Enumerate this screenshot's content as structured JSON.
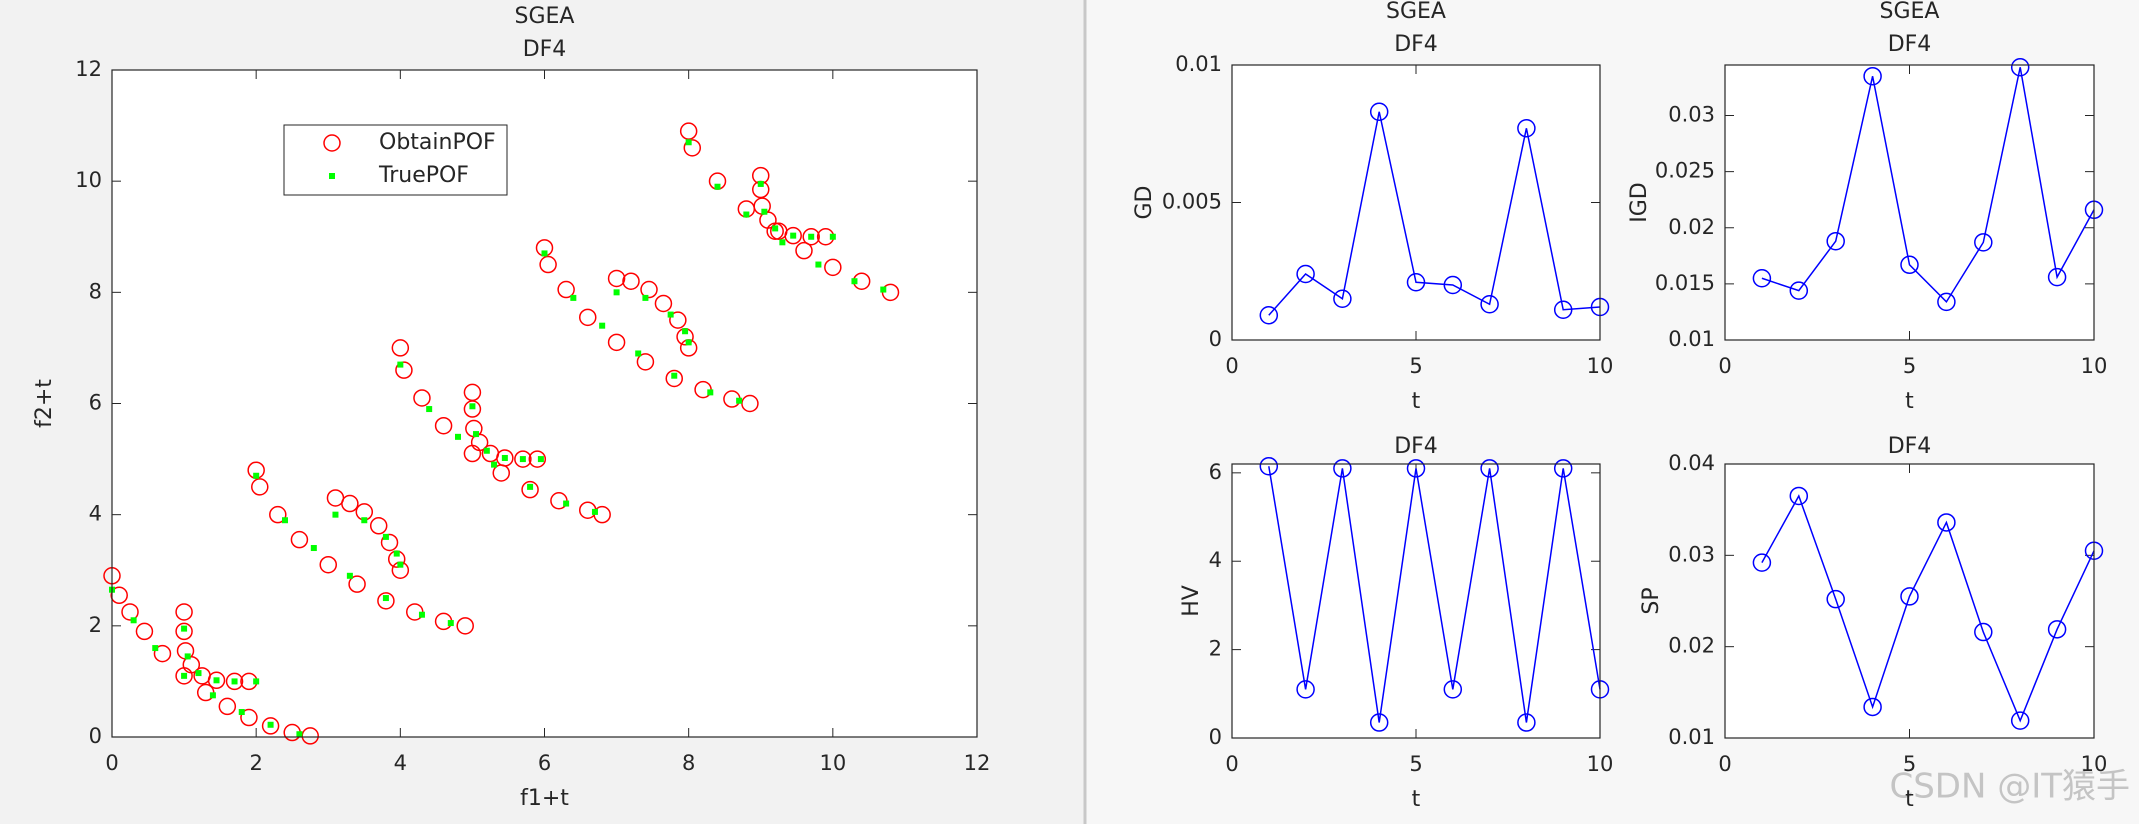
{
  "chart_data": [
    {
      "type": "scatter",
      "title": "SGEA",
      "subtitle": "DF4",
      "x_label": "f1+t",
      "y_label": "f2+t",
      "xlim": [
        0,
        12
      ],
      "ylim": [
        0,
        12
      ],
      "xticks": [
        0,
        2,
        4,
        6,
        8,
        10,
        12
      ],
      "yticks": [
        0,
        2,
        4,
        6,
        8,
        10,
        12
      ],
      "legend": "northwest",
      "series": [
        {
          "name": "ObtainPOF",
          "color": "#ff0000",
          "marker": "o",
          "x": [
            0,
            0.1,
            0.25,
            0.45,
            0.7,
            1.0,
            1.3,
            1.6,
            1.9,
            2.2,
            2.5,
            2.75,
            1,
            1,
            1.02,
            1.1,
            1.25,
            1.45,
            1.7,
            1.9,
            2,
            2.05,
            2.3,
            2.6,
            3.0,
            3.4,
            3.8,
            4.2,
            4.6,
            4.9,
            3.1,
            3.3,
            3.5,
            3.7,
            3.85,
            3.95,
            4.0,
            4,
            4.05,
            4.3,
            4.6,
            5.0,
            5.4,
            5.8,
            6.2,
            6.6,
            6.8,
            5,
            5,
            5.02,
            5.1,
            5.25,
            5.45,
            5.7,
            5.9,
            6,
            6.05,
            6.3,
            6.6,
            7.0,
            7.4,
            7.8,
            8.2,
            8.6,
            8.85,
            7,
            7.2,
            7.45,
            7.65,
            7.85,
            7.95,
            8.0,
            8,
            8.05,
            8.4,
            8.8,
            9.2,
            9.6,
            10.0,
            10.4,
            10.8,
            9,
            9,
            9.02,
            9.1,
            9.25,
            9.45,
            9.7,
            9.9
          ],
          "y": [
            2.9,
            2.55,
            2.25,
            1.9,
            1.5,
            1.1,
            0.8,
            0.55,
            0.35,
            0.2,
            0.08,
            0.02,
            2.25,
            1.9,
            1.55,
            1.3,
            1.1,
            1.02,
            1.0,
            1.0,
            4.8,
            4.5,
            4.0,
            3.55,
            3.1,
            2.75,
            2.45,
            2.25,
            2.08,
            2.0,
            4.3,
            4.2,
            4.05,
            3.8,
            3.5,
            3.2,
            3.0,
            7.0,
            6.6,
            6.1,
            5.6,
            5.1,
            4.75,
            4.45,
            4.25,
            4.08,
            4.0,
            6.2,
            5.9,
            5.55,
            5.3,
            5.1,
            5.02,
            5.0,
            5.0,
            8.8,
            8.5,
            8.05,
            7.55,
            7.1,
            6.75,
            6.45,
            6.25,
            6.08,
            6.0,
            8.25,
            8.2,
            8.05,
            7.8,
            7.5,
            7.2,
            7.0,
            10.9,
            10.6,
            10.0,
            9.5,
            9.1,
            8.75,
            8.45,
            8.2,
            8.0,
            10.1,
            9.85,
            9.55,
            9.3,
            9.1,
            9.02,
            9.0,
            9.0
          ]
        },
        {
          "name": "TruePOF",
          "color": "#00ff00",
          "marker": ".",
          "x": [
            0,
            0.3,
            0.6,
            1.0,
            1.4,
            1.8,
            2.2,
            2.6,
            1,
            1.05,
            1.2,
            1.45,
            1.7,
            2.0,
            2,
            2.4,
            2.8,
            3.3,
            3.8,
            4.3,
            4.7,
            3.1,
            3.5,
            3.8,
            3.95,
            4.0,
            4,
            4.4,
            4.8,
            5.3,
            5.8,
            6.3,
            6.7,
            5,
            5.05,
            5.2,
            5.45,
            5.7,
            5.95,
            6,
            6.4,
            6.8,
            7.3,
            7.8,
            8.3,
            8.7,
            7.0,
            7.4,
            7.75,
            7.95,
            8.0,
            8,
            8.4,
            8.8,
            9.3,
            9.8,
            10.3,
            10.7,
            9,
            9.05,
            9.2,
            9.45,
            9.7,
            10.0
          ],
          "y": [
            2.65,
            2.1,
            1.6,
            1.1,
            0.75,
            0.45,
            0.22,
            0.05,
            1.95,
            1.45,
            1.15,
            1.02,
            1.0,
            1.0,
            4.7,
            3.9,
            3.4,
            2.9,
            2.5,
            2.2,
            2.05,
            4.0,
            3.9,
            3.6,
            3.3,
            3.1,
            6.7,
            5.9,
            5.4,
            4.9,
            4.5,
            4.2,
            4.05,
            5.95,
            5.45,
            5.15,
            5.02,
            5.0,
            5.0,
            8.7,
            7.9,
            7.4,
            6.9,
            6.5,
            6.2,
            6.05,
            8.0,
            7.9,
            7.6,
            7.3,
            7.1,
            10.7,
            9.9,
            9.4,
            8.9,
            8.5,
            8.2,
            8.05,
            9.95,
            9.45,
            9.15,
            9.02,
            9.0,
            9.0
          ]
        }
      ]
    },
    {
      "type": "line",
      "title": "SGEA",
      "subtitle": "DF4",
      "x_label": "t",
      "y_label": "GD",
      "x": [
        1,
        2,
        3,
        4,
        5,
        6,
        7,
        8,
        9,
        10
      ],
      "xlim": [
        0,
        10
      ],
      "xticks": [
        0,
        5,
        10
      ],
      "ylim": [
        0,
        0.01
      ],
      "yticks": [
        0,
        0.005,
        0.01
      ],
      "series": [
        {
          "color": "#0000ff",
          "values": [
            0.0009,
            0.0024,
            0.0015,
            0.0083,
            0.0021,
            0.002,
            0.0013,
            0.0077,
            0.0011,
            0.0012
          ]
        }
      ]
    },
    {
      "type": "line",
      "title": "SGEA",
      "subtitle": "DF4",
      "x_label": "t",
      "y_label": "IGD",
      "x": [
        1,
        2,
        3,
        4,
        5,
        6,
        7,
        8,
        9,
        10
      ],
      "xlim": [
        0,
        10
      ],
      "xticks": [
        0,
        5,
        10
      ],
      "ylim": [
        0.01,
        0.0345
      ],
      "yticks": [
        0.01,
        0.015,
        0.02,
        0.025,
        0.03
      ],
      "series": [
        {
          "color": "#0000ff",
          "values": [
            0.0155,
            0.0144,
            0.0188,
            0.0335,
            0.0167,
            0.0134,
            0.0187,
            0.0343,
            0.0156,
            0.0216
          ]
        }
      ]
    },
    {
      "type": "line",
      "title": "DF4",
      "x_label": "t",
      "y_label": "HV",
      "x": [
        1,
        2,
        3,
        4,
        5,
        6,
        7,
        8,
        9,
        10
      ],
      "xlim": [
        0,
        10
      ],
      "xticks": [
        0,
        5,
        10
      ],
      "ylim": [
        0,
        6.2
      ],
      "yticks": [
        0,
        2,
        4,
        6
      ],
      "series": [
        {
          "color": "#0000ff",
          "values": [
            6.15,
            1.1,
            6.1,
            0.35,
            6.1,
            1.1,
            6.1,
            0.35,
            6.1,
            1.1
          ]
        }
      ]
    },
    {
      "type": "line",
      "title": "DF4",
      "x_label": "t",
      "y_label": "SP",
      "x": [
        1,
        2,
        3,
        4,
        5,
        6,
        7,
        8,
        9,
        10
      ],
      "xlim": [
        0,
        10
      ],
      "xticks": [
        0,
        5,
        10
      ],
      "ylim": [
        0.01,
        0.04
      ],
      "yticks": [
        0.01,
        0.02,
        0.03,
        0.04
      ],
      "series": [
        {
          "color": "#0000ff",
          "values": [
            0.0292,
            0.0365,
            0.0252,
            0.0134,
            0.0255,
            0.0336,
            0.0216,
            0.0119,
            0.0219,
            0.0305
          ]
        }
      ]
    }
  ],
  "watermark": "CSDN @IT猿手"
}
